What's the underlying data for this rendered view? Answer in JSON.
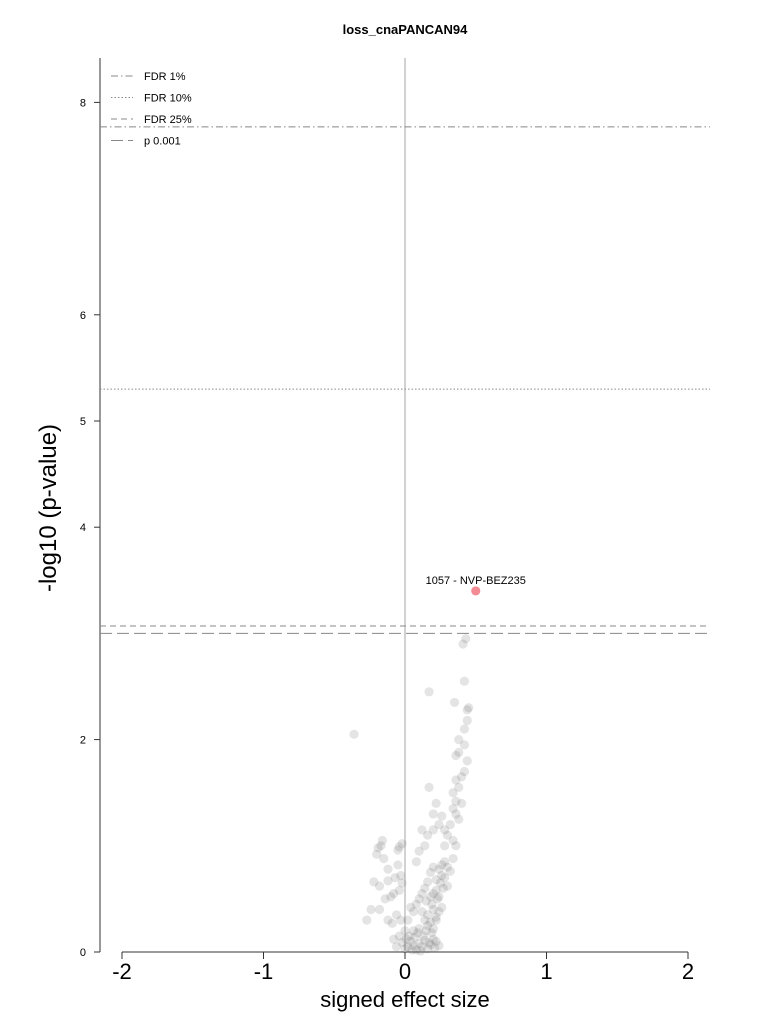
{
  "chart_data": {
    "type": "scatter",
    "title": "loss_cnaPANCAN94",
    "xlabel": "signed effect size",
    "ylabel": "-log10 (p-value)",
    "xlim": [
      -2.15,
      2.15
    ],
    "ylim": [
      0,
      8.5
    ],
    "x_ticks": [
      -2,
      -1,
      0,
      1,
      2
    ],
    "x_tick_labels": [
      "-2",
      "-1",
      "0",
      "1",
      "2"
    ],
    "y_ticks": [
      0,
      2,
      4,
      5,
      6,
      8
    ],
    "y_tick_labels": [
      "0",
      "2",
      "4",
      "5",
      "6",
      "8"
    ],
    "zero_line_x": 0,
    "thresholds": [
      {
        "label": "FDR 1%",
        "y": 7.77,
        "style": "dashdot"
      },
      {
        "label": "FDR 10%",
        "y": 5.3,
        "style": "dotted"
      },
      {
        "label": "FDR 25%",
        "y": 3.07,
        "style": "dashed"
      },
      {
        "label": "p 0.001",
        "y": 3.0,
        "style": "longdash"
      }
    ],
    "legend_position": "top-left",
    "highlight": {
      "x": 0.5,
      "y": 3.4,
      "label": "1057 - NVP-BEZ235",
      "color": "#f28b94"
    },
    "point_color": "#555555",
    "points": [
      [
        -0.36,
        2.05
      ],
      [
        -0.16,
        1.05
      ],
      [
        -0.17,
        1.0
      ],
      [
        -0.19,
        0.98
      ],
      [
        -0.15,
        0.88
      ],
      [
        -0.2,
        0.92
      ],
      [
        -0.12,
        0.78
      ],
      [
        -0.05,
        0.96
      ],
      [
        -0.04,
        0.99
      ],
      [
        -0.02,
        1.02
      ],
      [
        -0.05,
        0.82
      ],
      [
        -0.03,
        0.72
      ],
      [
        -0.07,
        0.7
      ],
      [
        -0.02,
        0.65
      ],
      [
        -0.12,
        0.67
      ],
      [
        -0.18,
        0.62
      ],
      [
        -0.22,
        0.66
      ],
      [
        -0.08,
        0.55
      ],
      [
        -0.14,
        0.5
      ],
      [
        -0.1,
        0.52
      ],
      [
        -0.04,
        0.58
      ],
      [
        -0.24,
        0.4
      ],
      [
        -0.27,
        0.3
      ],
      [
        -0.18,
        0.4
      ],
      [
        -0.12,
        0.3
      ],
      [
        -0.09,
        0.27
      ],
      [
        -0.06,
        0.35
      ],
      [
        -0.03,
        0.3
      ],
      [
        -0.04,
        0.15
      ],
      [
        -0.06,
        0.05
      ],
      [
        -0.02,
        0.09
      ],
      [
        -0.08,
        0.12
      ],
      [
        0.0,
        0.2
      ],
      [
        0.0,
        0.03
      ],
      [
        0.02,
        0.05
      ],
      [
        0.04,
        0.1
      ],
      [
        0.06,
        0.06
      ],
      [
        0.08,
        0.02
      ],
      [
        0.1,
        0.08
      ],
      [
        0.12,
        0.05
      ],
      [
        0.14,
        0.11
      ],
      [
        0.16,
        0.03
      ],
      [
        0.18,
        0.07
      ],
      [
        0.2,
        0.12
      ],
      [
        0.03,
        0.15
      ],
      [
        0.05,
        0.02
      ],
      [
        0.07,
        0.14
      ],
      [
        0.09,
        0.18
      ],
      [
        0.11,
        0.01
      ],
      [
        0.13,
        0.15
      ],
      [
        0.15,
        0.2
      ],
      [
        0.17,
        0.09
      ],
      [
        0.19,
        0.18
      ],
      [
        0.21,
        0.04
      ],
      [
        0.01,
        0.12
      ],
      [
        0.22,
        0.1
      ],
      [
        0.24,
        0.06
      ],
      [
        0.06,
        0.2
      ],
      [
        0.1,
        0.22
      ],
      [
        0.16,
        0.25
      ],
      [
        0.2,
        0.22
      ],
      [
        0.14,
        0.3
      ],
      [
        0.16,
        0.35
      ],
      [
        0.18,
        0.28
      ],
      [
        0.2,
        0.4
      ],
      [
        0.22,
        0.33
      ],
      [
        0.24,
        0.38
      ],
      [
        0.12,
        0.38
      ],
      [
        0.22,
        0.3
      ],
      [
        0.19,
        0.45
      ],
      [
        0.23,
        0.5
      ],
      [
        0.15,
        0.48
      ],
      [
        0.26,
        0.42
      ],
      [
        0.2,
        0.55
      ],
      [
        0.22,
        0.58
      ],
      [
        0.24,
        0.52
      ],
      [
        0.18,
        0.52
      ],
      [
        0.27,
        0.6
      ],
      [
        0.25,
        0.65
      ],
      [
        0.28,
        0.7
      ],
      [
        0.3,
        0.62
      ],
      [
        0.26,
        0.72
      ],
      [
        0.22,
        0.68
      ],
      [
        0.24,
        0.78
      ],
      [
        0.26,
        0.82
      ],
      [
        0.28,
        0.85
      ],
      [
        0.2,
        0.8
      ],
      [
        0.3,
        0.8
      ],
      [
        0.32,
        0.76
      ],
      [
        0.34,
        0.88
      ],
      [
        0.18,
        0.75
      ],
      [
        0.16,
        0.66
      ],
      [
        0.14,
        0.6
      ],
      [
        0.12,
        0.55
      ],
      [
        0.1,
        0.5
      ],
      [
        0.08,
        0.45
      ],
      [
        0.06,
        0.38
      ],
      [
        0.04,
        0.42
      ],
      [
        0.02,
        0.3
      ],
      [
        0.36,
        1.0
      ],
      [
        0.34,
        1.05
      ],
      [
        0.3,
        1.1
      ],
      [
        0.28,
        1.15
      ],
      [
        0.32,
        1.2
      ],
      [
        0.38,
        1.25
      ],
      [
        0.36,
        1.3
      ],
      [
        0.34,
        1.35
      ],
      [
        0.4,
        1.4
      ],
      [
        0.36,
        1.42
      ],
      [
        0.34,
        1.5
      ],
      [
        0.38,
        1.55
      ],
      [
        0.4,
        1.65
      ],
      [
        0.36,
        1.62
      ],
      [
        0.42,
        1.7
      ],
      [
        0.2,
        1.3
      ],
      [
        0.24,
        1.2
      ],
      [
        0.26,
        1.28
      ],
      [
        0.14,
        1.0
      ],
      [
        0.16,
        1.1
      ],
      [
        0.12,
        1.15
      ],
      [
        0.22,
        1.4
      ],
      [
        0.28,
        1.0
      ],
      [
        0.1,
        0.95
      ],
      [
        0.08,
        0.85
      ],
      [
        0.17,
        1.55
      ],
      [
        0.2,
        1.15
      ],
      [
        0.36,
        1.85
      ],
      [
        0.38,
        1.88
      ],
      [
        0.44,
        1.8
      ],
      [
        0.42,
        1.95
      ],
      [
        0.38,
        2.0
      ],
      [
        0.42,
        2.1
      ],
      [
        0.44,
        2.18
      ],
      [
        0.44,
        2.28
      ],
      [
        0.45,
        2.3
      ],
      [
        0.35,
        2.35
      ],
      [
        0.17,
        2.45
      ],
      [
        0.42,
        2.55
      ],
      [
        0.41,
        2.9
      ],
      [
        0.43,
        2.95
      ]
    ]
  }
}
